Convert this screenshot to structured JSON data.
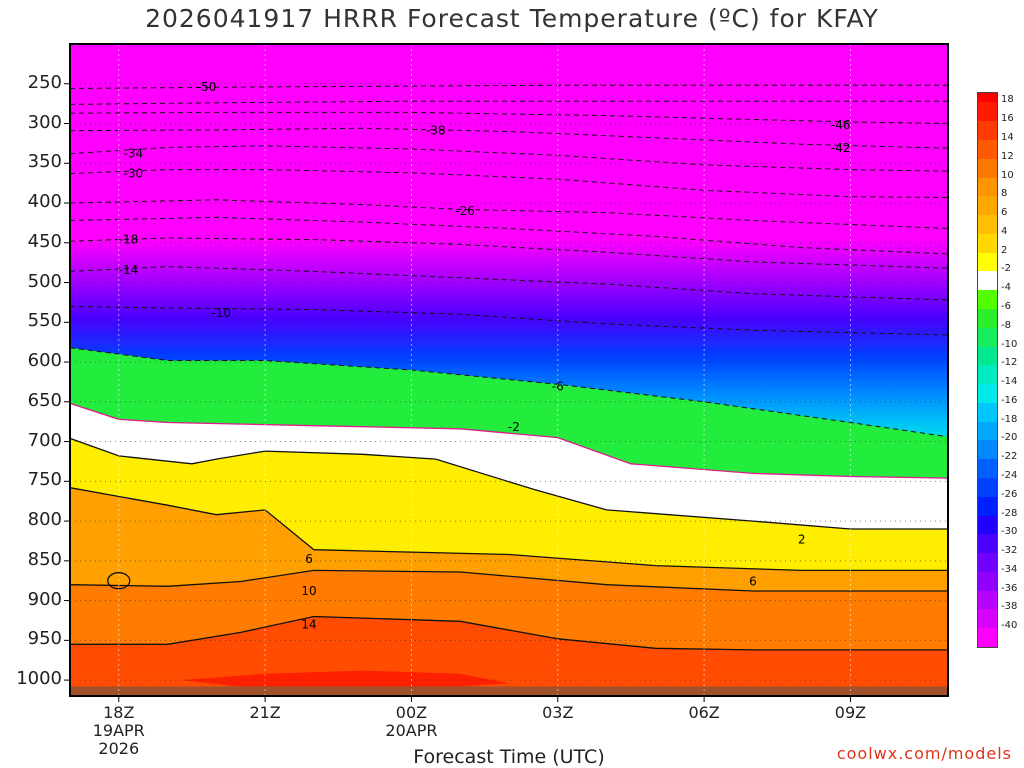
{
  "title": "2026041917 HRRR Forecast Temperature (ºC) for KFAY",
  "credit": "coolwx.com/models",
  "chart_data": {
    "type": "heatmap",
    "title": "2026041917 HRRR Forecast Temperature (ºC) for KFAY",
    "xlabel": "Forecast Time (UTC)",
    "ylabel": "",
    "x_ticks": [
      {
        "label": "18Z",
        "sub1": "19APR",
        "sub2": "2026"
      },
      {
        "label": "21Z",
        "sub1": "",
        "sub2": ""
      },
      {
        "label": "00Z",
        "sub1": "20APR",
        "sub2": ""
      },
      {
        "label": "03Z",
        "sub1": "",
        "sub2": ""
      },
      {
        "label": "06Z",
        "sub1": "",
        "sub2": ""
      },
      {
        "label": "09Z",
        "sub1": "",
        "sub2": ""
      }
    ],
    "x_hours": [
      18,
      21,
      24,
      27,
      30,
      33
    ],
    "x_range_hours": [
      17,
      35
    ],
    "y_ticks": [
      250,
      300,
      350,
      400,
      450,
      500,
      550,
      600,
      650,
      700,
      750,
      800,
      850,
      900,
      950,
      1000
    ],
    "y_range_hpa": [
      200,
      1020
    ],
    "colorbar": {
      "labels": [
        18,
        16,
        14,
        12,
        10,
        8,
        6,
        4,
        2,
        -2,
        -4,
        -6,
        -8,
        -10,
        -12,
        -14,
        -16,
        -18,
        -20,
        -22,
        -24,
        -26,
        -28,
        -30,
        -32,
        -34,
        -36,
        -38,
        -40
      ],
      "colors": [
        "#ff1a00",
        "#ff3c00",
        "#ff5a00",
        "#ff7800",
        "#ff9600",
        "#ffa800",
        "#ffbe00",
        "#ffd800",
        "#ffff00",
        "#ffffff",
        "#52ff00",
        "#2aef2a",
        "#1aec60",
        "#00e890",
        "#00ecc0",
        "#00e8e8",
        "#00c8ff",
        "#00a8ff",
        "#0088ff",
        "#0060ff",
        "#0040ff",
        "#0020ff",
        "#2000ff",
        "#4a00ff",
        "#7000ff",
        "#9000ff",
        "#b800ff",
        "#d800ff",
        "#ff00ff"
      ]
    },
    "contour_labels": [
      {
        "text": "-50",
        "hour": 19.8,
        "hpa": 254
      },
      {
        "text": "-38",
        "hour": 24.5,
        "hpa": 309
      },
      {
        "text": "-46",
        "hour": 32.8,
        "hpa": 302
      },
      {
        "text": "-42",
        "hour": 32.8,
        "hpa": 331
      },
      {
        "text": "-34",
        "hour": 18.3,
        "hpa": 338
      },
      {
        "text": "-30",
        "hour": 18.3,
        "hpa": 363
      },
      {
        "text": "-26",
        "hour": 25.1,
        "hpa": 410
      },
      {
        "text": "-18",
        "hour": 18.2,
        "hpa": 446
      },
      {
        "text": "-14",
        "hour": 18.2,
        "hpa": 484
      },
      {
        "text": "-10",
        "hour": 20.1,
        "hpa": 538
      },
      {
        "text": "-6",
        "hour": 27.0,
        "hpa": 631
      },
      {
        "text": "-2",
        "hour": 26.1,
        "hpa": 682
      },
      {
        "text": "2",
        "hour": 32.0,
        "hpa": 823
      },
      {
        "text": "6",
        "hour": 31.0,
        "hpa": 876
      },
      {
        "text": "6",
        "hour": 21.9,
        "hpa": 848
      },
      {
        "text": "10",
        "hour": 21.9,
        "hpa": 888
      },
      {
        "text": "14",
        "hour": 21.9,
        "hpa": 930
      }
    ],
    "contour_lines": [
      {
        "level": -50,
        "style": "dashed",
        "points": [
          [
            17,
            256
          ],
          [
            19,
            255
          ],
          [
            21,
            254
          ],
          [
            24,
            253
          ],
          [
            27,
            252
          ],
          [
            30,
            252
          ],
          [
            35,
            252
          ]
        ]
      },
      {
        "level": -48,
        "style": "dashed",
        "points": [
          [
            17,
            276
          ],
          [
            20,
            274
          ],
          [
            24,
            272
          ],
          [
            28,
            272
          ],
          [
            31,
            272
          ],
          [
            35,
            272
          ]
        ]
      },
      {
        "level": -46,
        "style": "dashed",
        "points": [
          [
            17,
            287
          ],
          [
            20,
            286
          ],
          [
            24,
            286
          ],
          [
            28,
            290
          ],
          [
            31,
            295
          ],
          [
            33,
            298
          ],
          [
            35,
            300
          ]
        ]
      },
      {
        "level": -38,
        "style": "dashed",
        "points": [
          [
            17,
            309
          ],
          [
            20,
            308
          ],
          [
            23,
            306
          ],
          [
            26,
            310
          ],
          [
            29,
            318
          ],
          [
            32,
            326
          ],
          [
            35,
            331
          ]
        ]
      },
      {
        "level": -34,
        "style": "dashed",
        "points": [
          [
            17,
            338
          ],
          [
            19,
            330
          ],
          [
            21,
            328
          ],
          [
            24,
            332
          ],
          [
            27,
            340
          ],
          [
            30,
            352
          ],
          [
            33,
            358
          ],
          [
            35,
            360
          ]
        ]
      },
      {
        "level": -30,
        "style": "dashed",
        "points": [
          [
            17,
            363
          ],
          [
            19,
            358
          ],
          [
            21,
            358
          ],
          [
            24,
            362
          ],
          [
            27,
            370
          ],
          [
            30,
            384
          ],
          [
            33,
            392
          ],
          [
            35,
            393
          ]
        ]
      },
      {
        "level": -26,
        "style": "dashed",
        "points": [
          [
            17,
            400
          ],
          [
            20,
            396
          ],
          [
            23,
            402
          ],
          [
            25,
            408
          ],
          [
            28,
            412
          ],
          [
            31,
            422
          ],
          [
            35,
            432
          ]
        ]
      },
      {
        "level": -22,
        "style": "dashed",
        "points": [
          [
            17,
            422
          ],
          [
            20,
            418
          ],
          [
            23,
            424
          ],
          [
            26,
            432
          ],
          [
            29,
            442
          ],
          [
            32,
            456
          ],
          [
            35,
            464
          ]
        ]
      },
      {
        "level": -18,
        "style": "dashed",
        "points": [
          [
            17,
            448
          ],
          [
            19,
            444
          ],
          [
            22,
            446
          ],
          [
            25,
            452
          ],
          [
            28,
            462
          ],
          [
            31,
            474
          ],
          [
            35,
            482
          ]
        ]
      },
      {
        "level": -14,
        "style": "dashed",
        "points": [
          [
            17,
            486
          ],
          [
            19,
            480
          ],
          [
            22,
            486
          ],
          [
            25,
            494
          ],
          [
            28,
            502
          ],
          [
            31,
            514
          ],
          [
            35,
            522
          ]
        ]
      },
      {
        "level": -10,
        "style": "dashed",
        "points": [
          [
            17,
            530
          ],
          [
            19,
            532
          ],
          [
            22,
            534
          ],
          [
            25,
            540
          ],
          [
            28,
            552
          ],
          [
            31,
            560
          ],
          [
            35,
            566
          ]
        ]
      },
      {
        "level": -6,
        "style": "dashed",
        "points": [
          [
            17,
            582
          ],
          [
            19,
            598
          ],
          [
            21,
            598
          ],
          [
            24,
            610
          ],
          [
            27,
            628
          ],
          [
            30,
            650
          ],
          [
            33,
            676
          ],
          [
            35,
            694
          ]
        ]
      },
      {
        "level": -2,
        "style": "solid",
        "color": "#e01a8c",
        "points": [
          [
            17,
            652
          ],
          [
            18,
            672
          ],
          [
            19,
            676
          ],
          [
            22,
            680
          ],
          [
            25,
            684
          ],
          [
            27,
            695
          ],
          [
            28.5,
            728
          ],
          [
            31,
            740
          ],
          [
            33,
            744
          ],
          [
            35,
            746
          ]
        ]
      },
      {
        "level": 2,
        "style": "solid",
        "points": [
          [
            17,
            696
          ],
          [
            18,
            718
          ],
          [
            19.5,
            728
          ],
          [
            20,
            722
          ],
          [
            21,
            712
          ],
          [
            23,
            716
          ],
          [
            24.5,
            722
          ],
          [
            26.5,
            760
          ],
          [
            28,
            786
          ],
          [
            31,
            800
          ],
          [
            33,
            810
          ],
          [
            35,
            810
          ]
        ]
      },
      {
        "level": 6,
        "style": "solid",
        "points": [
          [
            17,
            758
          ],
          [
            19,
            780
          ],
          [
            20,
            792
          ],
          [
            21,
            786
          ],
          [
            22,
            836
          ],
          [
            26,
            842
          ],
          [
            29,
            856
          ],
          [
            32,
            862
          ],
          [
            35,
            862
          ]
        ]
      },
      {
        "level": 10,
        "style": "solid",
        "points": [
          [
            17,
            880
          ],
          [
            19,
            882
          ],
          [
            20.5,
            876
          ],
          [
            22,
            862
          ],
          [
            25,
            864
          ],
          [
            28,
            880
          ],
          [
            31,
            888
          ],
          [
            35,
            888
          ]
        ]
      },
      {
        "level": 14,
        "style": "solid",
        "points": [
          [
            17,
            955
          ],
          [
            19,
            955
          ],
          [
            20.5,
            940
          ],
          [
            22,
            920
          ],
          [
            25,
            926
          ],
          [
            27,
            948
          ],
          [
            29,
            960
          ],
          [
            31,
            962
          ],
          [
            35,
            962
          ]
        ]
      }
    ]
  }
}
